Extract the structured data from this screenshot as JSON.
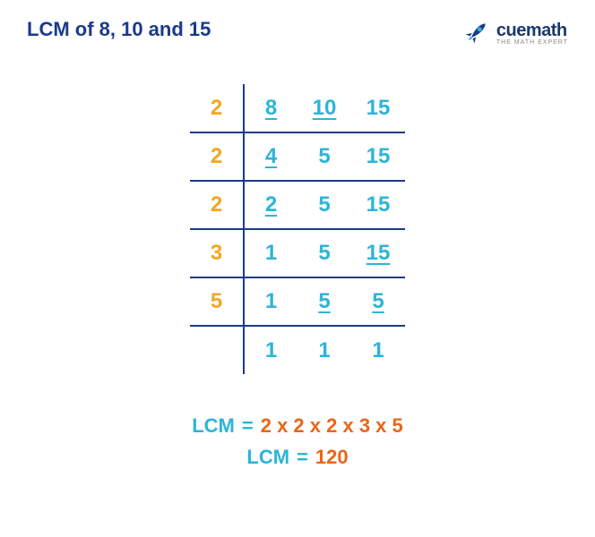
{
  "colors": {
    "title": "#1a3a8a",
    "orange": "#f5a623",
    "cyan": "#2bb5d8",
    "navy": "#1a3a8a",
    "result_orange": "#e8661b",
    "logo_navy": "#1a3a6e",
    "logo_gray": "#888888",
    "rocket_body": "#1a3a8a",
    "rocket_flame": "#2bb5d8"
  },
  "title": "LCM of 8, 10 and 15",
  "logo": {
    "main": "cuemath",
    "sub": "THE MATH EXPERT"
  },
  "table": {
    "rows": [
      {
        "divisor": "2",
        "cells": [
          {
            "v": "8",
            "underline": true
          },
          {
            "v": "10",
            "underline": true
          },
          {
            "v": "15",
            "underline": false
          }
        ],
        "border": true
      },
      {
        "divisor": "2",
        "cells": [
          {
            "v": "4",
            "underline": true
          },
          {
            "v": "5",
            "underline": false
          },
          {
            "v": "15",
            "underline": false
          }
        ],
        "border": true
      },
      {
        "divisor": "2",
        "cells": [
          {
            "v": "2",
            "underline": true
          },
          {
            "v": "5",
            "underline": false
          },
          {
            "v": "15",
            "underline": false
          }
        ],
        "border": true
      },
      {
        "divisor": "3",
        "cells": [
          {
            "v": "1",
            "underline": false
          },
          {
            "v": "5",
            "underline": false
          },
          {
            "v": "15",
            "underline": true
          }
        ],
        "border": true
      },
      {
        "divisor": "5",
        "cells": [
          {
            "v": "1",
            "underline": false
          },
          {
            "v": "5",
            "underline": true
          },
          {
            "v": "5",
            "underline": true
          }
        ],
        "border": true
      },
      {
        "divisor": "",
        "cells": [
          {
            "v": "1",
            "underline": false
          },
          {
            "v": "1",
            "underline": false
          },
          {
            "v": "1",
            "underline": false
          }
        ],
        "border": false
      }
    ]
  },
  "result": {
    "label": "LCM",
    "eq": "=",
    "expression": "2 x 2 x 2 x 3 x 5",
    "value": "120"
  }
}
